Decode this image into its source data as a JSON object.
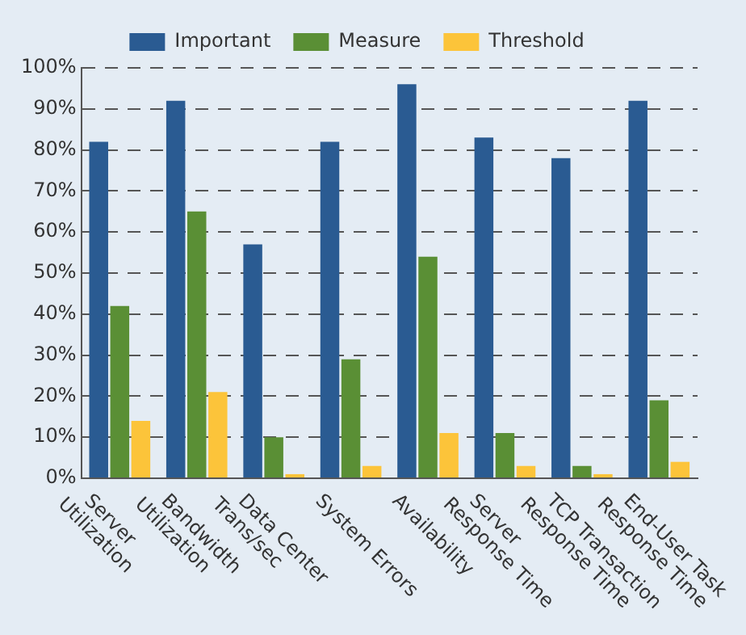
{
  "chart_data": {
    "type": "bar",
    "categories": [
      "Server\nUtilization",
      "Bandwidth\nUtilization",
      "Data Center\nTrans/sec",
      "System Errors",
      "Availability",
      "Server\nResponse Time",
      "TCP Transaction\nResponse Time",
      "End-User Task\nResponse Time"
    ],
    "series": [
      {
        "name": "Important",
        "color": "#2a5b92",
        "values": [
          82,
          92,
          57,
          82,
          96,
          83,
          78,
          92
        ]
      },
      {
        "name": "Measure",
        "color": "#5a8f35",
        "values": [
          42,
          65,
          10,
          29,
          54,
          11,
          3,
          19
        ]
      },
      {
        "name": "Threshold",
        "color": "#fcc43a",
        "values": [
          14,
          21,
          1,
          3,
          11,
          3,
          1,
          4
        ]
      }
    ],
    "ylim": [
      0,
      100
    ],
    "yticks": [
      {
        "value": 0,
        "label": "0%"
      },
      {
        "value": 10,
        "label": "10%"
      },
      {
        "value": 20,
        "label": "20%"
      },
      {
        "value": 30,
        "label": "30%"
      },
      {
        "value": 40,
        "label": "40%"
      },
      {
        "value": 50,
        "label": "50%"
      },
      {
        "value": 60,
        "label": "60%"
      },
      {
        "value": 70,
        "label": "70%"
      },
      {
        "value": 80,
        "label": "80%"
      },
      {
        "value": 90,
        "label": "90%"
      },
      {
        "value": 100,
        "label": "100%"
      }
    ],
    "grid": "y",
    "legend": "top"
  }
}
